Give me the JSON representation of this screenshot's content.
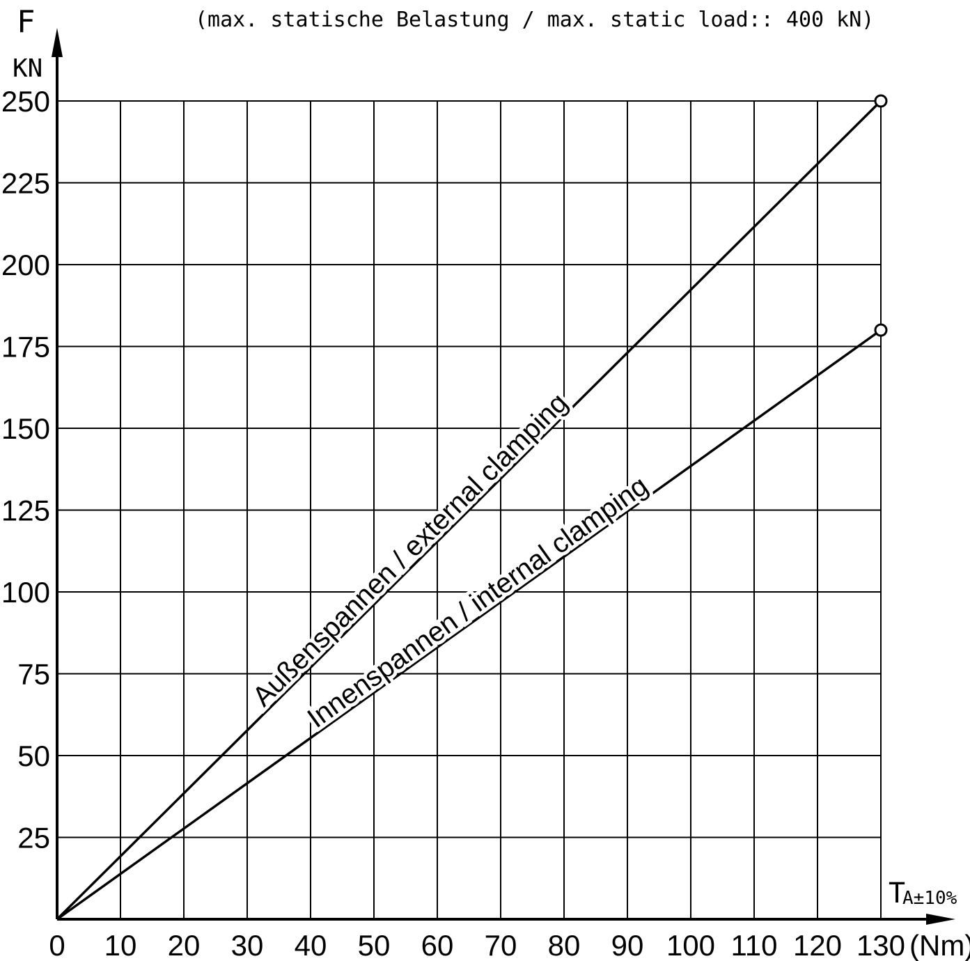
{
  "chart_data": {
    "type": "line",
    "title": "(max. statische Belastung / max. static load:: 400 kN)",
    "ylabel_symbol": "F",
    "ylabel_unit": "KN",
    "xlabel_symbol": "T",
    "xlabel_subscript": "A±10%",
    "xlabel_unit": "(Nm)",
    "xlim": [
      0,
      130
    ],
    "ylim": [
      0,
      250
    ],
    "x_ticks": [
      0,
      10,
      20,
      30,
      40,
      50,
      60,
      70,
      80,
      90,
      100,
      110,
      120,
      130
    ],
    "y_ticks": [
      25,
      50,
      75,
      100,
      125,
      150,
      175,
      200,
      225,
      250
    ],
    "grid": true,
    "legend": "none",
    "series": [
      {
        "name": "Außenspannen / external clamping",
        "x": [
          0,
          130
        ],
        "y": [
          0,
          250
        ]
      },
      {
        "name": "Innenspannen / internal clamping",
        "x": [
          0,
          130
        ],
        "y": [
          0,
          180
        ]
      }
    ]
  }
}
